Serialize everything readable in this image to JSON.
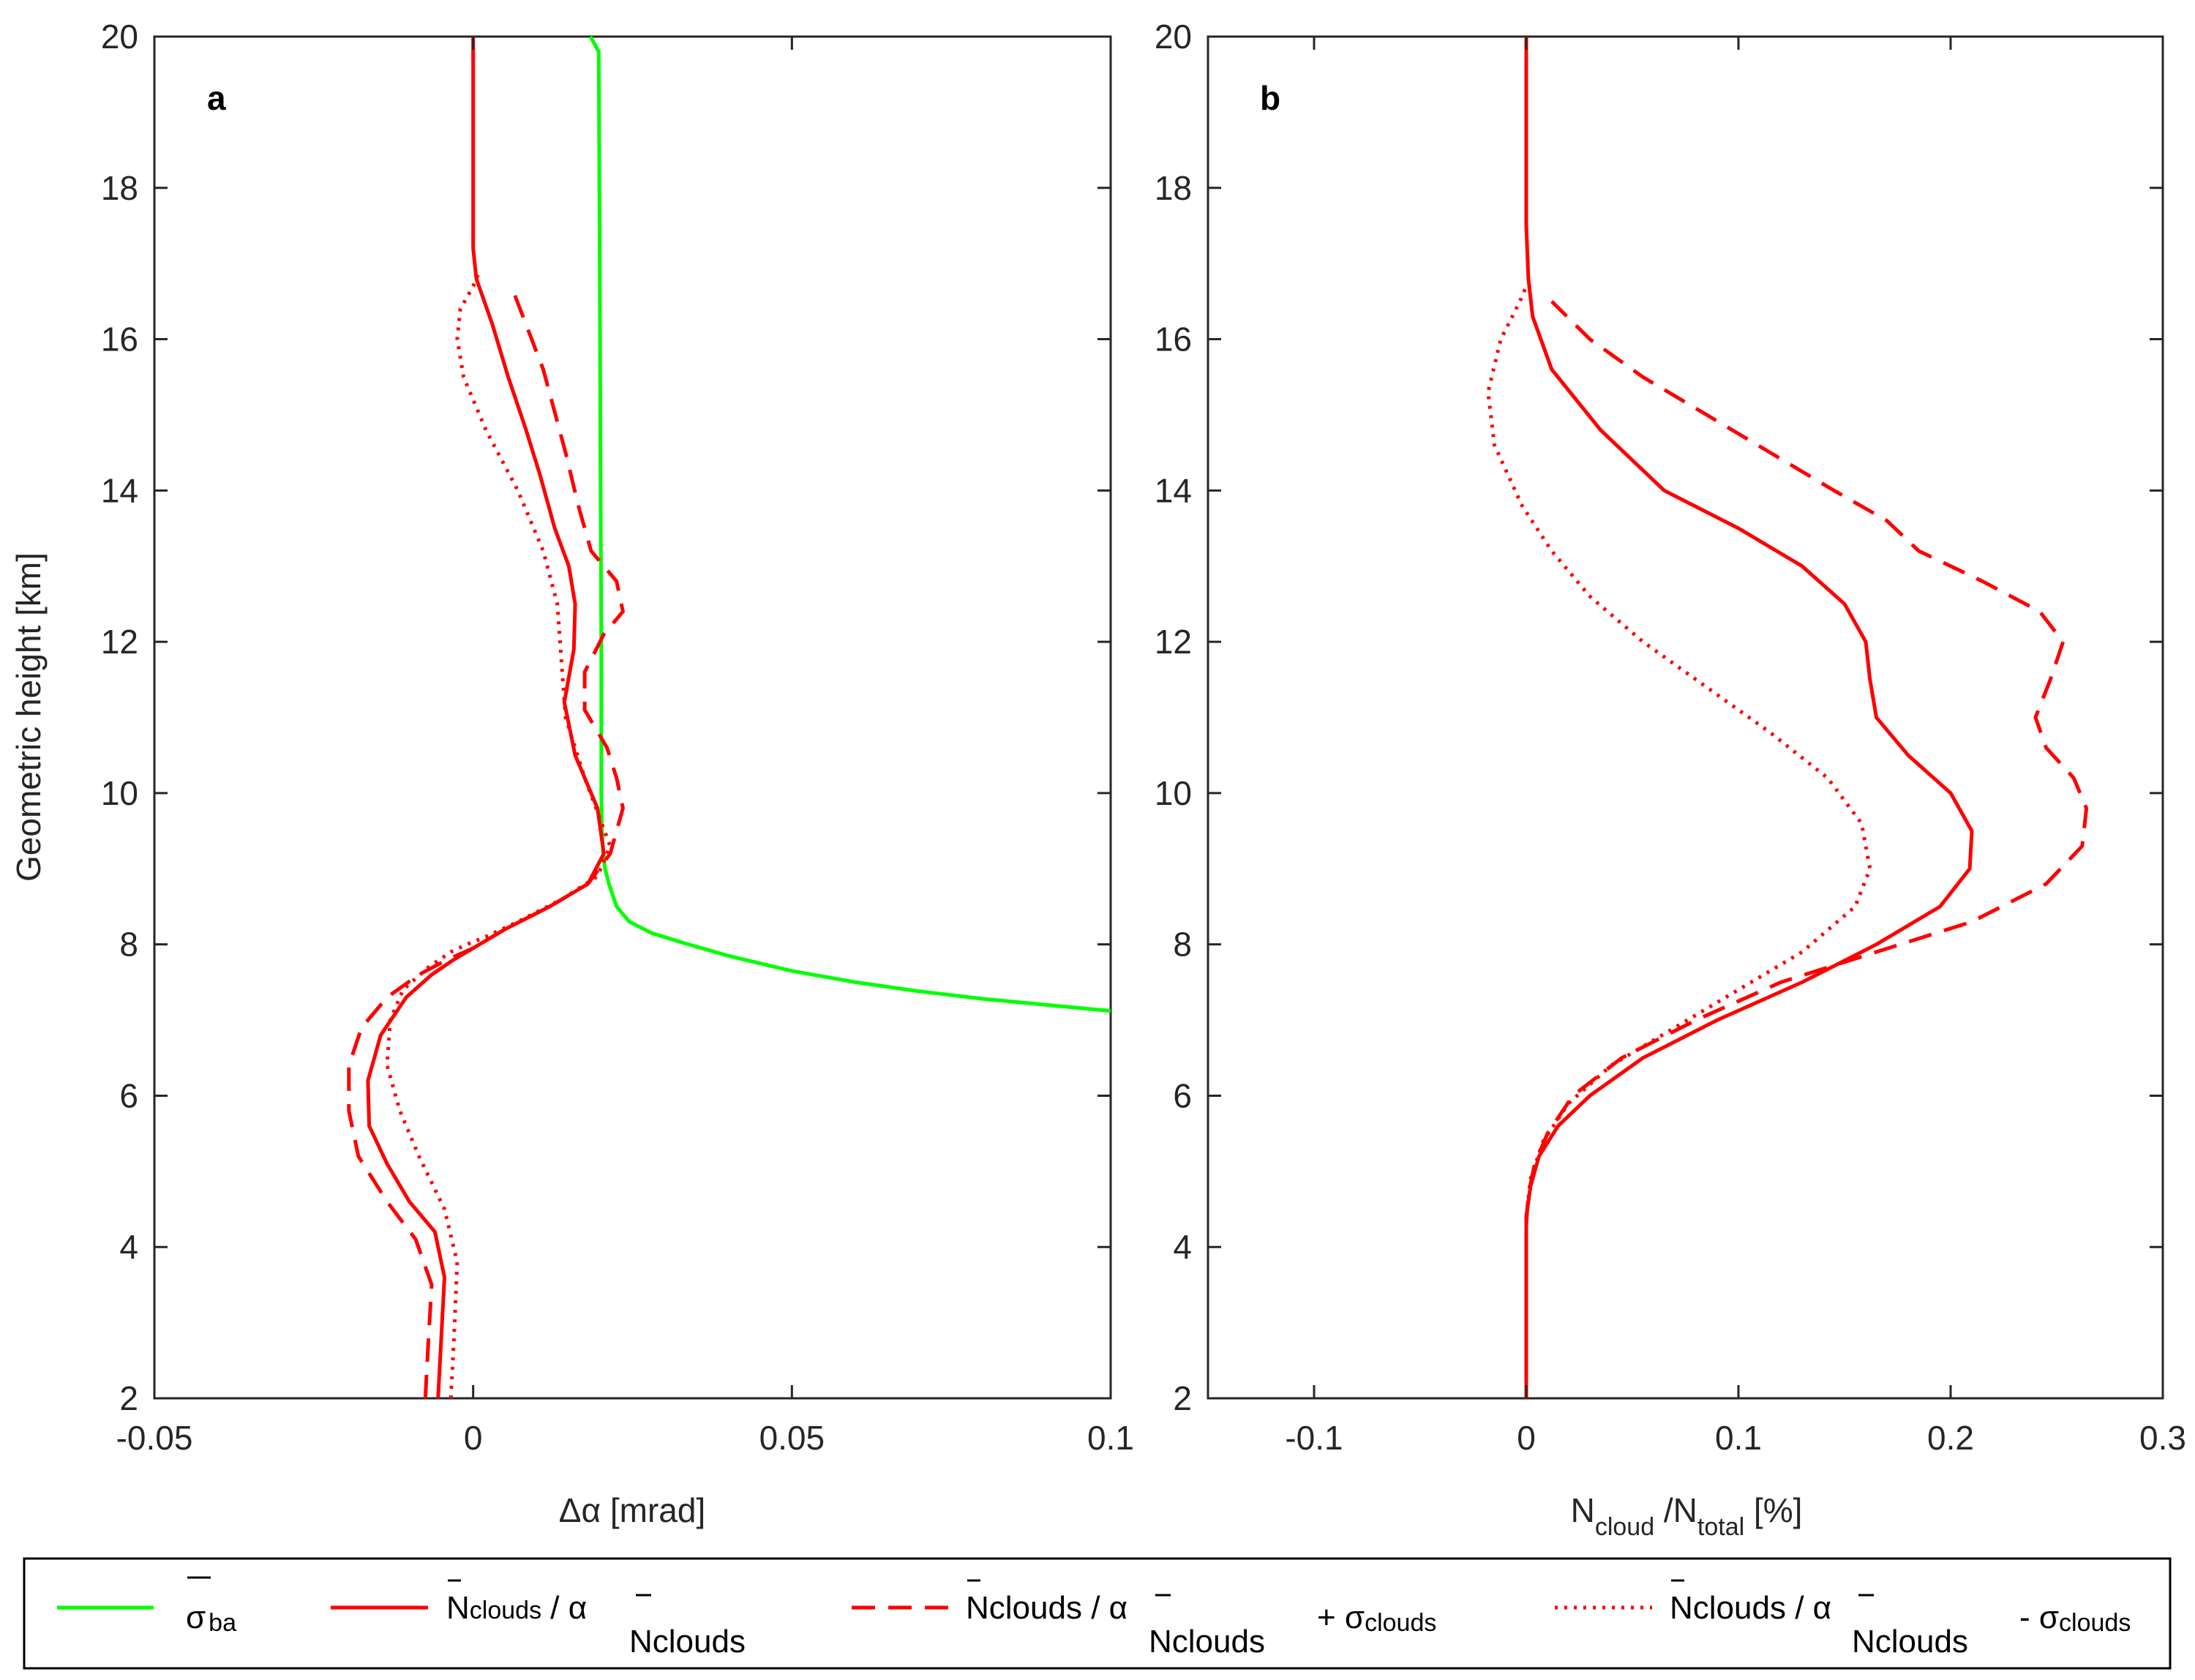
{
  "chart_data": [
    {
      "panel": "a",
      "type": "line",
      "xlabel": "Δα   [mrad]",
      "ylabel": "Geometric height [km]",
      "xlim": [
        -0.05,
        0.1
      ],
      "ylim": [
        2,
        20
      ],
      "xticks": [
        -0.05,
        0,
        0.05,
        0.1
      ],
      "xtick_labels": [
        "-0.05",
        "0",
        "0.05",
        "0.1"
      ],
      "yticks": [
        2,
        4,
        6,
        8,
        10,
        12,
        14,
        16,
        18,
        20
      ],
      "ytick_labels": [
        "2",
        "4",
        "6",
        "8",
        "10",
        "12",
        "14",
        "16",
        "18",
        "20"
      ],
      "series": [
        {
          "key": "sigma_ba",
          "color": "#00ff00",
          "style": "solid",
          "x": [
            0.0184,
            0.0197,
            0.0198,
            0.0199,
            0.02,
            0.0201,
            0.0201,
            0.0202,
            0.0204,
            0.0207,
            0.0213,
            0.0225,
            0.0245,
            0.028,
            0.033,
            0.04,
            0.05,
            0.06,
            0.07,
            0.08,
            0.09,
            0.1
          ],
          "y": [
            20,
            19.8,
            18,
            16,
            14,
            12,
            10,
            9.5,
            9.2,
            9.0,
            8.8,
            8.5,
            8.3,
            8.15,
            8.02,
            7.85,
            7.65,
            7.5,
            7.38,
            7.28,
            7.2,
            7.12
          ]
        },
        {
          "key": "mean",
          "color": "#ff0000",
          "style": "solid",
          "x": [
            -0.0055,
            -0.005,
            -0.0045,
            -0.006,
            -0.01,
            -0.0135,
            -0.0163,
            -0.0165,
            -0.0145,
            -0.0105,
            -0.0065,
            -0.003,
            0.0,
            0.005,
            0.012,
            0.018,
            0.0205,
            0.0195,
            0.016,
            0.0143,
            0.0158,
            0.016,
            0.015,
            0.0128,
            0.0105,
            0.0083,
            0.0055,
            0.003,
            0.0005,
            0.0,
            0.0,
            0.0
          ],
          "y": [
            2,
            2.8,
            3.6,
            4.2,
            4.6,
            5.1,
            5.6,
            6.2,
            6.8,
            7.3,
            7.6,
            7.8,
            7.95,
            8.2,
            8.5,
            8.8,
            9.2,
            9.8,
            10.5,
            11.2,
            11.9,
            12.5,
            13.0,
            13.5,
            14.2,
            14.8,
            15.5,
            16.2,
            16.8,
            17.2,
            18.5,
            20
          ]
        },
        {
          "key": "plus",
          "color": "#ff0000",
          "style": "dashed",
          "x": [
            -0.0075,
            -0.007,
            -0.0065,
            -0.009,
            -0.0135,
            -0.018,
            -0.0195,
            -0.0195,
            -0.0175,
            -0.0135,
            -0.0085,
            -0.004,
            0.0,
            0.005,
            0.012,
            0.018,
            0.0215,
            0.0235,
            0.0225,
            0.021,
            0.0175,
            0.0175,
            0.0205,
            0.0235,
            0.0225,
            0.0185,
            0.0165,
            0.0145,
            0.011,
            0.006
          ],
          "y": [
            2,
            2.8,
            3.5,
            4.1,
            4.6,
            5.2,
            5.8,
            6.4,
            6.9,
            7.3,
            7.6,
            7.8,
            7.95,
            8.2,
            8.5,
            8.8,
            9.2,
            9.8,
            10.2,
            10.6,
            11.1,
            11.6,
            12.1,
            12.4,
            12.8,
            13.2,
            13.8,
            14.5,
            15.6,
            16.7
          ]
        },
        {
          "key": "minus",
          "color": "#ff0000",
          "style": "dotted",
          "x": [
            -0.0035,
            -0.003,
            -0.0025,
            -0.0045,
            -0.0085,
            -0.0115,
            -0.0135,
            -0.013,
            -0.011,
            -0.007,
            -0.0035,
            -0.001,
            0.002,
            0.007,
            0.014,
            0.0195,
            0.0215,
            0.0175,
            0.0145,
            0.0138,
            0.0132,
            0.011,
            0.007,
            0.002,
            -0.0015,
            -0.0025,
            -0.002,
            0.0,
            0.001
          ],
          "y": [
            2,
            2.8,
            3.8,
            4.5,
            5.2,
            5.8,
            6.4,
            7.0,
            7.4,
            7.7,
            7.9,
            8.0,
            8.1,
            8.3,
            8.6,
            8.9,
            9.3,
            10.2,
            11.0,
            11.8,
            12.5,
            13.2,
            14.0,
            14.8,
            15.5,
            16.0,
            16.4,
            16.7,
            16.9
          ]
        }
      ]
    },
    {
      "panel": "b",
      "type": "line",
      "xlabel": "N",
      "xlabel_parts": [
        "N",
        "cloud",
        " /N",
        "total",
        "  [%]"
      ],
      "xlim": [
        -0.15,
        0.3
      ],
      "ylim": [
        2,
        20
      ],
      "xticks": [
        -0.1,
        0,
        0.1,
        0.2,
        0.3
      ],
      "xtick_labels": [
        "-0.1",
        "0",
        "0.1",
        "0.2",
        "0.3"
      ],
      "yticks": [
        2,
        4,
        6,
        8,
        10,
        12,
        14,
        16,
        18,
        20
      ],
      "ytick_labels": [
        "2",
        "4",
        "6",
        "8",
        "10",
        "12",
        "14",
        "16",
        "18",
        "20"
      ],
      "series": [
        {
          "key": "mean",
          "color": "#ff0000",
          "style": "solid",
          "x": [
            0,
            0,
            0,
            0.002,
            0.006,
            0.015,
            0.03,
            0.055,
            0.09,
            0.13,
            0.165,
            0.195,
            0.209,
            0.21,
            0.2,
            0.18,
            0.165,
            0.162,
            0.16,
            0.15,
            0.13,
            0.1,
            0.065,
            0.035,
            0.012,
            0.003,
            0.001,
            0,
            0
          ],
          "y": [
            2,
            4,
            4.4,
            4.8,
            5.2,
            5.6,
            6.0,
            6.5,
            7.0,
            7.5,
            8.0,
            8.5,
            9.0,
            9.5,
            10.0,
            10.5,
            11.0,
            11.5,
            12.0,
            12.5,
            13.0,
            13.5,
            14.0,
            14.8,
            15.6,
            16.3,
            16.8,
            17.5,
            20
          ]
        },
        {
          "key": "plus",
          "color": "#ff0000",
          "style": "dashed",
          "x": [
            0,
            0.001,
            0.004,
            0.01,
            0.022,
            0.045,
            0.08,
            0.12,
            0.165,
            0.21,
            0.245,
            0.262,
            0.264,
            0.258,
            0.245,
            0.24,
            0.247,
            0.253,
            0.242,
            0.215,
            0.185,
            0.17,
            0.145,
            0.115,
            0.085,
            0.055,
            0.03,
            0.012
          ],
          "y": [
            4.3,
            4.7,
            5.1,
            5.5,
            6.0,
            6.5,
            7.0,
            7.5,
            7.9,
            8.3,
            8.8,
            9.3,
            9.8,
            10.2,
            10.6,
            11.0,
            11.5,
            12.0,
            12.4,
            12.8,
            13.2,
            13.6,
            14.0,
            14.5,
            15.0,
            15.5,
            16.0,
            16.5
          ]
        },
        {
          "key": "minus",
          "color": "#ff0000",
          "style": "dotted",
          "x": [
            0,
            0.002,
            0.008,
            0.02,
            0.04,
            0.07,
            0.1,
            0.13,
            0.155,
            0.162,
            0.158,
            0.142,
            0.115,
            0.085,
            0.055,
            0.03,
            0.012,
            -0.002,
            -0.015,
            -0.018,
            -0.012,
            -0.003,
            0.0
          ],
          "y": [
            4.4,
            4.9,
            5.4,
            5.9,
            6.4,
            6.9,
            7.4,
            7.9,
            8.5,
            9.0,
            9.6,
            10.2,
            10.8,
            11.4,
            12.0,
            12.6,
            13.2,
            13.8,
            14.6,
            15.3,
            16.0,
            16.5,
            16.7
          ]
        }
      ]
    }
  ],
  "panels": {
    "a": "a",
    "b": "b"
  },
  "legend": {
    "sigma": {
      "base": "σ",
      "sub": "ba"
    },
    "mean": {
      "n": "N",
      "n_sub": "clouds",
      "slash": " / α",
      "alpha_sub": "N",
      "alpha_sub2": "clouds"
    },
    "plus": {
      "n": "N",
      "n_sub": "clouds",
      "slash": " / α",
      "alpha_sub": "N",
      "alpha_sub2": "clouds",
      "op": " + σ",
      "op_sub": "clouds"
    },
    "minus": {
      "n": "N",
      "n_sub": "clouds",
      "slash": " / α",
      "alpha_sub": "N",
      "alpha_sub2": "clouds",
      "op": " - σ",
      "op_sub": "clouds"
    }
  },
  "colors": {
    "green": "#00ff00",
    "red": "#ff0000",
    "axis": "#262626"
  }
}
